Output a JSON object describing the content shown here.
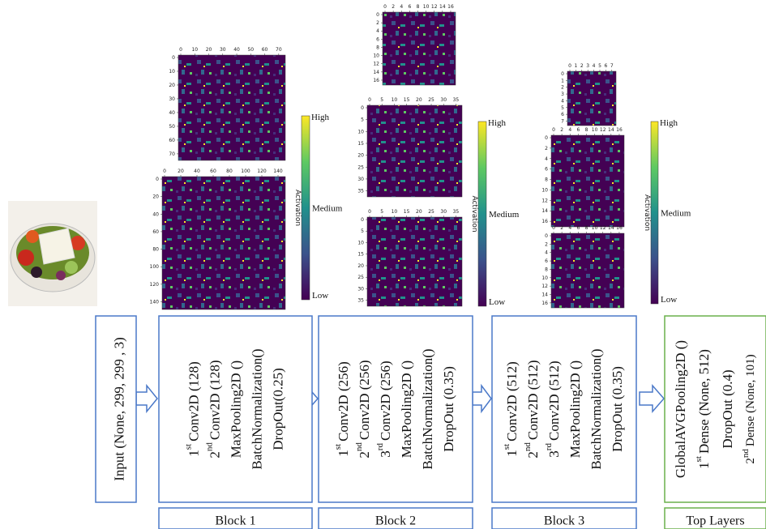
{
  "input": {
    "label": "Input (None, 299, 299 , 3)"
  },
  "blocks": [
    {
      "title": "Block 1",
      "layers": [
        {
          "num": "1",
          "sup": "st",
          "text": "Conv2D (128)"
        },
        {
          "num": "2",
          "sup": "nd",
          "text": "Conv2D (128)"
        },
        {
          "text": "MaxPooling2D ()"
        },
        {
          "text": "BatchNormalization()"
        },
        {
          "text": "DropOut(0.25)"
        }
      ],
      "maps": [
        {
          "xticks": [
            0,
            10,
            20,
            30,
            40,
            50,
            60,
            70
          ],
          "yticks": [
            0,
            10,
            20,
            30,
            40,
            50,
            60,
            70
          ]
        },
        {
          "xticks": [
            0,
            20,
            40,
            60,
            80,
            100,
            120,
            140
          ],
          "yticks": [
            0,
            20,
            40,
            60,
            80,
            100,
            120,
            140
          ]
        }
      ],
      "colorbar": {
        "high": "High",
        "medium": "Medium",
        "low": "Low",
        "label": "Activation"
      }
    },
    {
      "title": "Block 2",
      "layers": [
        {
          "num": "1",
          "sup": "st",
          "text": "Conv2D (256)"
        },
        {
          "num": "2",
          "sup": "nd",
          "text": "Conv2D (256)"
        },
        {
          "num": "3",
          "sup": "rd",
          "text": "Conv2D (256)"
        },
        {
          "text": "MaxPooling2D ()"
        },
        {
          "text": "BatchNormalization()"
        },
        {
          "text": "DropOut (0.35)"
        }
      ],
      "maps": [
        {
          "xticks": [
            0,
            2,
            4,
            6,
            8,
            10,
            12,
            14,
            16
          ],
          "yticks": [
            0,
            2,
            4,
            6,
            8,
            10,
            12,
            14,
            16
          ]
        },
        {
          "xticks": [
            0,
            5,
            10,
            15,
            20,
            25,
            30,
            35
          ],
          "yticks": [
            0,
            5,
            10,
            15,
            20,
            25,
            30,
            35
          ]
        },
        {
          "xticks": [
            0,
            5,
            10,
            15,
            20,
            25,
            30,
            35
          ],
          "yticks": [
            0,
            5,
            10,
            15,
            20,
            25,
            30,
            35
          ]
        }
      ],
      "colorbar": {
        "high": "High",
        "medium": "Medium",
        "low": "Low",
        "label": "Activation"
      }
    },
    {
      "title": "Block 3",
      "layers": [
        {
          "num": "1",
          "sup": "st",
          "text": "Conv2D (512)"
        },
        {
          "num": "2",
          "sup": "nd",
          "text": "Conv2D (512)"
        },
        {
          "num": "3",
          "sup": "rd",
          "text": "Conv2D (512)"
        },
        {
          "text": "MaxPooling2D ()"
        },
        {
          "text": "BatchNormalization()"
        },
        {
          "text": "DropOut (0.35)"
        }
      ],
      "maps": [
        {
          "xticks": [
            0,
            1,
            2,
            3,
            4,
            5,
            6,
            7
          ],
          "yticks": [
            0,
            1,
            2,
            3,
            4,
            5,
            6,
            7
          ]
        },
        {
          "xticks": [
            0,
            2,
            4,
            6,
            8,
            10,
            12,
            14,
            16
          ],
          "yticks": [
            0,
            2,
            4,
            6,
            8,
            10,
            12,
            14,
            16
          ]
        },
        {
          "xticks": [
            0,
            2,
            4,
            6,
            8,
            10,
            12,
            14,
            16
          ],
          "yticks": [
            0,
            2,
            4,
            6,
            8,
            10,
            12,
            14,
            16
          ]
        }
      ],
      "colorbar": {
        "high": "High",
        "medium": "Medium",
        "low": "Low",
        "label": "Activation"
      }
    },
    {
      "title": "Top Layers",
      "layers": [
        {
          "text": "GlobalAVGPooling2D ()"
        },
        {
          "num": "1",
          "sup": "st",
          "text": "Dense (None, 512)"
        },
        {
          "text": "DropOut (0.4)"
        },
        {
          "num": "2",
          "sup": "nd",
          "text": "Dense (None, 101)"
        }
      ]
    }
  ]
}
